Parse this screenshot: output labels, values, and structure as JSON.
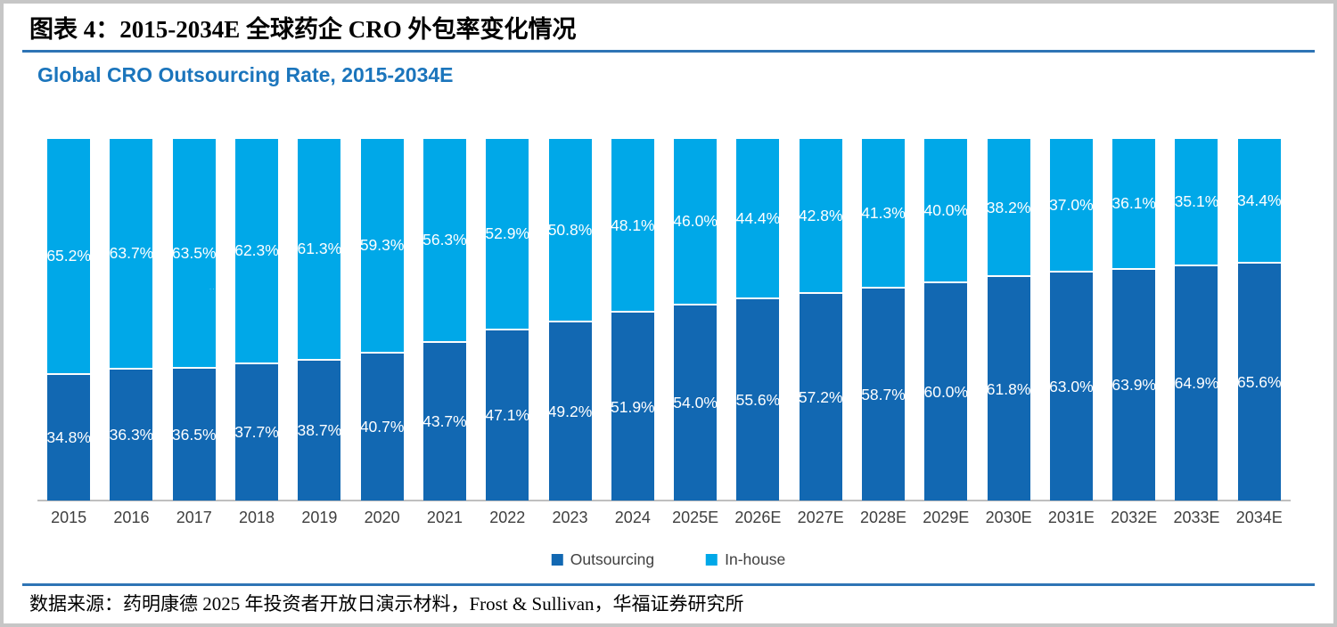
{
  "figure": {
    "caption": "图表 4：2015-2034E 全球药企 CRO 外包率变化情况",
    "source": "数据来源：药明康德 2025 年投资者开放日演示材料，Frost & Sullivan，华福证券研究所"
  },
  "chart": {
    "title": "Global CRO Outsourcing Rate, 2015-2034E",
    "legend": [
      {
        "label": "Outsourcing",
        "color": "#1268b2"
      },
      {
        "label": "In-house",
        "color": "#00a8e8"
      }
    ]
  },
  "chart_data": {
    "type": "bar",
    "stacked": true,
    "title": "Global CRO Outsourcing Rate, 2015-2034E",
    "categories": [
      "2015",
      "2016",
      "2017",
      "2018",
      "2019",
      "2020",
      "2021",
      "2022",
      "2023",
      "2024",
      "2025E",
      "2026E",
      "2027E",
      "2028E",
      "2029E",
      "2030E",
      "2031E",
      "2032E",
      "2033E",
      "2034E"
    ],
    "series": [
      {
        "name": "Outsourcing",
        "color": "#1268b2",
        "values": [
          34.8,
          36.3,
          36.5,
          37.7,
          38.7,
          40.7,
          43.7,
          47.1,
          49.2,
          51.9,
          54.0,
          55.6,
          57.2,
          58.7,
          60.0,
          61.8,
          63.0,
          63.9,
          64.9,
          65.6
        ]
      },
      {
        "name": "In-house",
        "color": "#00a8e8",
        "values": [
          65.2,
          63.7,
          63.5,
          62.3,
          61.3,
          59.3,
          56.3,
          52.9,
          50.8,
          48.1,
          46.0,
          44.4,
          42.8,
          41.3,
          40.0,
          38.2,
          37.0,
          36.1,
          35.1,
          34.4
        ]
      }
    ],
    "value_format": "0.0%",
    "bar_labels": true,
    "ylim": [
      0,
      100
    ],
    "grid": false,
    "legend_position": "bottom",
    "xlabel": "",
    "ylabel": ""
  },
  "decor": {
    "watermark_artifact": "····",
    "accent_rule_color": "#2e74b5",
    "chart_title_color": "#1b75bc",
    "axis_line_color": "#bfbfbf"
  }
}
